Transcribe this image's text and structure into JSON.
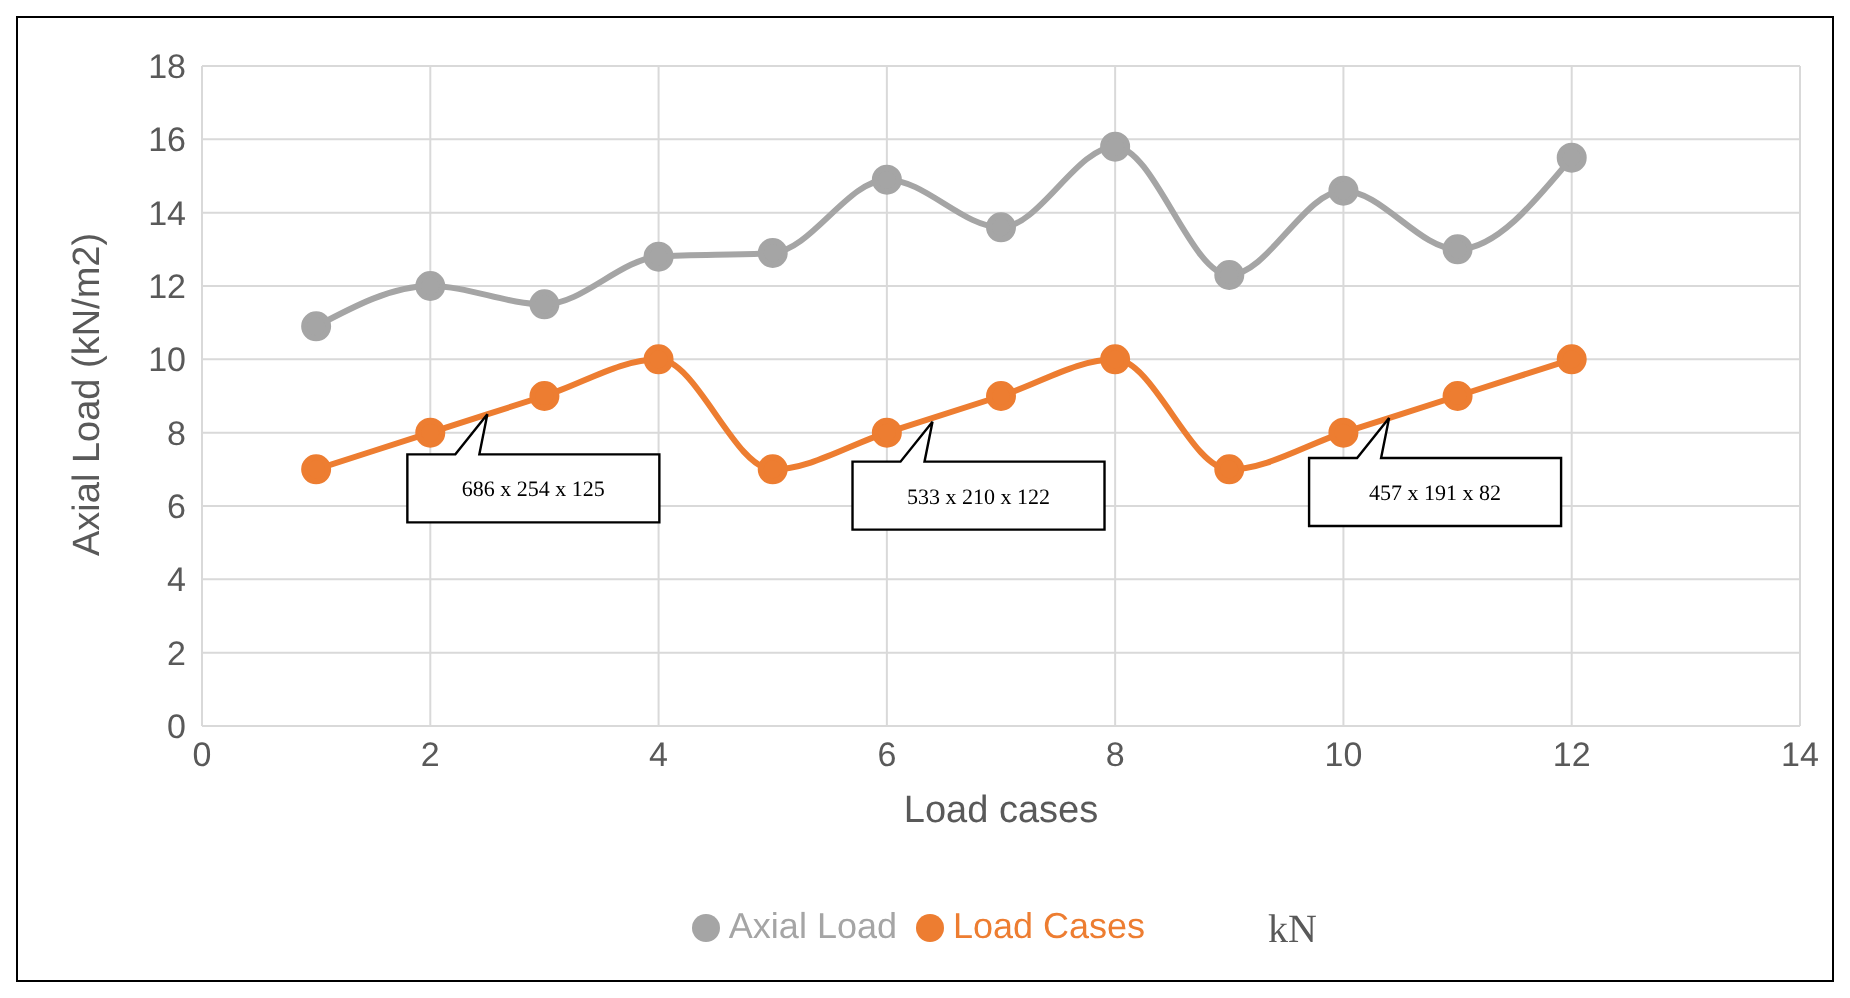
{
  "chart_data": {
    "type": "line",
    "xlabel": "Load cases",
    "ylabel": "Axial Load (kN/m2)",
    "x": [
      1,
      2,
      3,
      4,
      5,
      6,
      7,
      8,
      9,
      10,
      11,
      12
    ],
    "series": [
      {
        "name": "Load Cases",
        "color": "#ed7d31",
        "values": [
          7,
          8,
          9,
          10,
          7,
          8,
          9,
          10,
          7,
          8,
          9,
          10
        ]
      },
      {
        "name": "Axial Load",
        "color": "#a5a5a5",
        "values": [
          10.9,
          12.0,
          11.5,
          12.8,
          12.9,
          14.9,
          13.6,
          15.8,
          12.3,
          14.6,
          13.0,
          15.5
        ]
      }
    ],
    "xlim": [
      0,
      14
    ],
    "xticks": [
      0,
      2,
      4,
      6,
      8,
      10,
      12,
      14
    ],
    "ylim": [
      0,
      18
    ],
    "yticks": [
      0,
      2,
      4,
      6,
      8,
      10,
      12,
      14,
      16,
      18
    ],
    "grid": true,
    "legend": "bottom",
    "marker": "circle",
    "line_style": "solid",
    "annotations": [
      {
        "text": "686 x 254 x 125",
        "x": 2.5,
        "y": 8.5
      },
      {
        "text": "533 x 210 x 122",
        "x": 6.4,
        "y": 8.3
      },
      {
        "text": "457 x 191 x 82",
        "x": 10.4,
        "y": 8.4
      },
      "kN"
    ]
  }
}
